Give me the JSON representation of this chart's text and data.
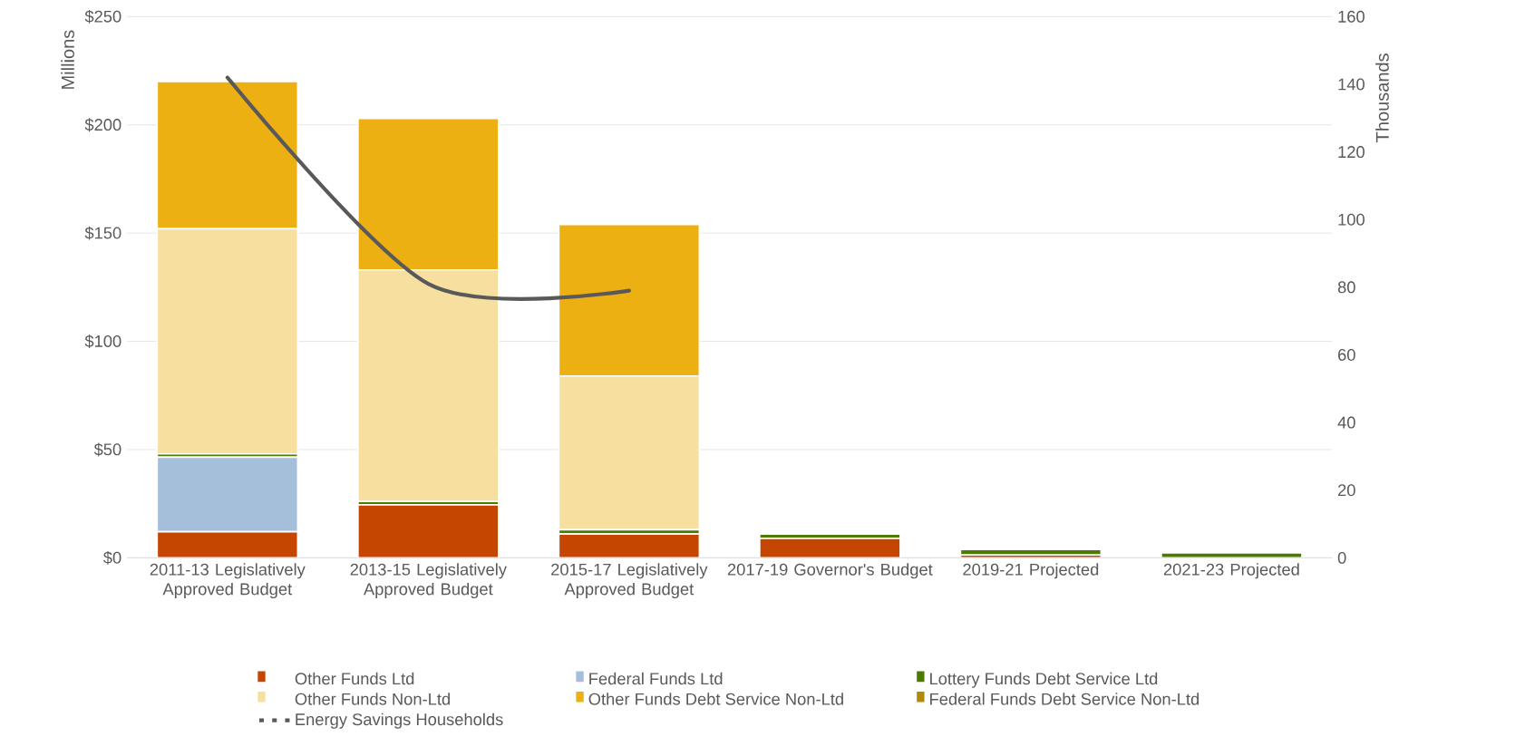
{
  "chart_data": {
    "type": "bar",
    "stacked": true,
    "ylabel": "Millions",
    "y2label": "Thousands",
    "categories": [
      "2011-13 Legislatively Approved Budget",
      "2013-15 Legislatively Approved Budget",
      "2015-17 Legislatively Approved Budget",
      "2017-19 Governor's Budget",
      "2019-21 Projected",
      "2021-23 Projected"
    ],
    "series": [
      {
        "name": "Other Funds Ltd",
        "color": "#c54600",
        "values": [
          12,
          24.5,
          11,
          9,
          1.3,
          0
        ]
      },
      {
        "name": "Federal Funds Ltd",
        "color": "#a5bed9",
        "values": [
          34.5,
          0,
          0,
          0,
          0,
          0
        ]
      },
      {
        "name": "Lottery Funds Debt Service Ltd",
        "color": "#4f7a00",
        "values": [
          1.5,
          1.5,
          2,
          2,
          2.5,
          2.3
        ]
      },
      {
        "name": "Other Funds Non-Ltd",
        "color": "#f7dfa0",
        "values": [
          104,
          107,
          71,
          0,
          0,
          0
        ]
      },
      {
        "name": "Other Funds Debt Service Non-Ltd",
        "color": "#edb013",
        "values": [
          68,
          70,
          70,
          0,
          0,
          0
        ]
      },
      {
        "name": "Federal Funds Debt Service Non-Ltd",
        "color": "#b08a0a",
        "values": [
          0,
          0,
          0,
          0,
          0,
          0
        ]
      },
      {
        "name": "Energy Savings Households",
        "type": "line",
        "axis": "y2",
        "color": "#595959",
        "values": [
          142,
          81,
          79,
          null,
          null,
          null
        ]
      }
    ],
    "ylim": [
      0,
      250
    ],
    "yticks": [
      {
        "value": 0,
        "label": "$0"
      },
      {
        "value": 50,
        "label": "$50"
      },
      {
        "value": 100,
        "label": "$100"
      },
      {
        "value": 150,
        "label": "$150"
      },
      {
        "value": 200,
        "label": "$200"
      },
      {
        "value": 250,
        "label": "$250"
      }
    ],
    "y2lim": [
      0,
      160
    ],
    "y2ticks": [
      0,
      20,
      40,
      60,
      80,
      100,
      120,
      140,
      160
    ],
    "grid": "y",
    "legend": "bottom",
    "marker": "none"
  }
}
